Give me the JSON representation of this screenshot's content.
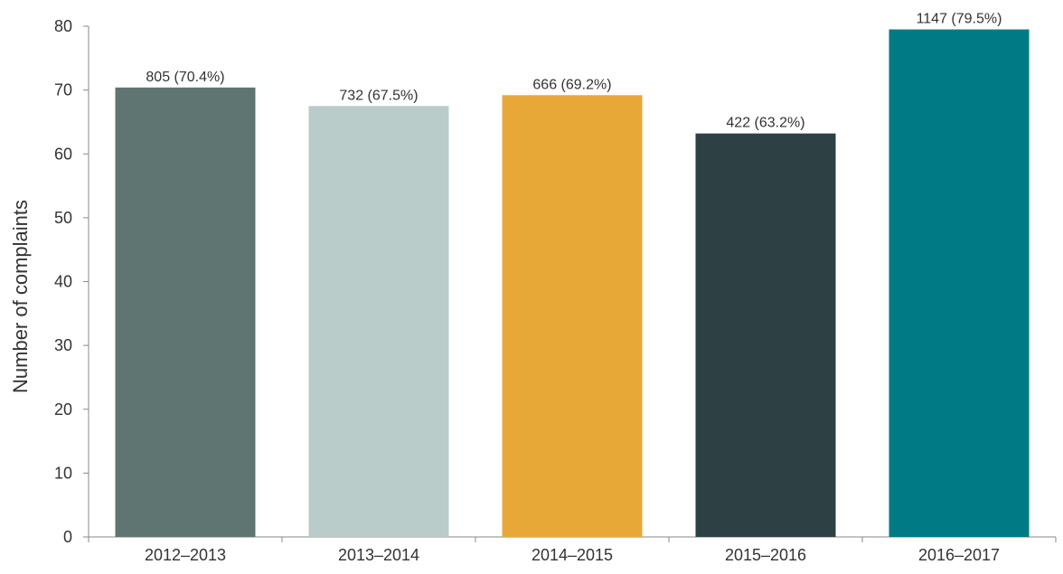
{
  "chart_data": {
    "type": "bar",
    "categories": [
      "2012–2013",
      "2013–2014",
      "2014–2015",
      "2015–2016",
      "2016–2017"
    ],
    "values": [
      70.4,
      67.5,
      69.2,
      63.2,
      79.5
    ],
    "data_labels": [
      "805 (70.4%)",
      "732 (67.5%)",
      "666 (69.2%)",
      "422 (63.2%)",
      "1147 (79.5%)"
    ],
    "colors": [
      "#5f7571",
      "#b9ccc9",
      "#e8a838",
      "#2d4145",
      "#007b86"
    ],
    "title": "",
    "xlabel": "",
    "ylabel": "Number of complaints",
    "ylim": [
      0,
      80
    ],
    "yticks": [
      0,
      10,
      20,
      30,
      40,
      50,
      60,
      70,
      80
    ],
    "grid": false,
    "axis_color": "#888888"
  }
}
